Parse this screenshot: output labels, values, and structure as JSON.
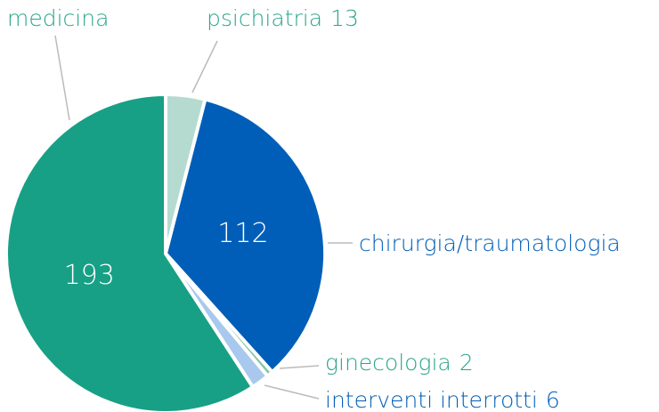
{
  "chart_data": {
    "type": "pie",
    "categories": [
      "psichiatria",
      "chirurgia/traumatologia",
      "ginecologia",
      "interventi interrotti",
      "medicina"
    ],
    "values": [
      13,
      112,
      2,
      6,
      193
    ],
    "colors": [
      "#b5dbd1",
      "#005eb8",
      "#86c6a6",
      "#a8c8ee",
      "#17a085"
    ]
  }
}
